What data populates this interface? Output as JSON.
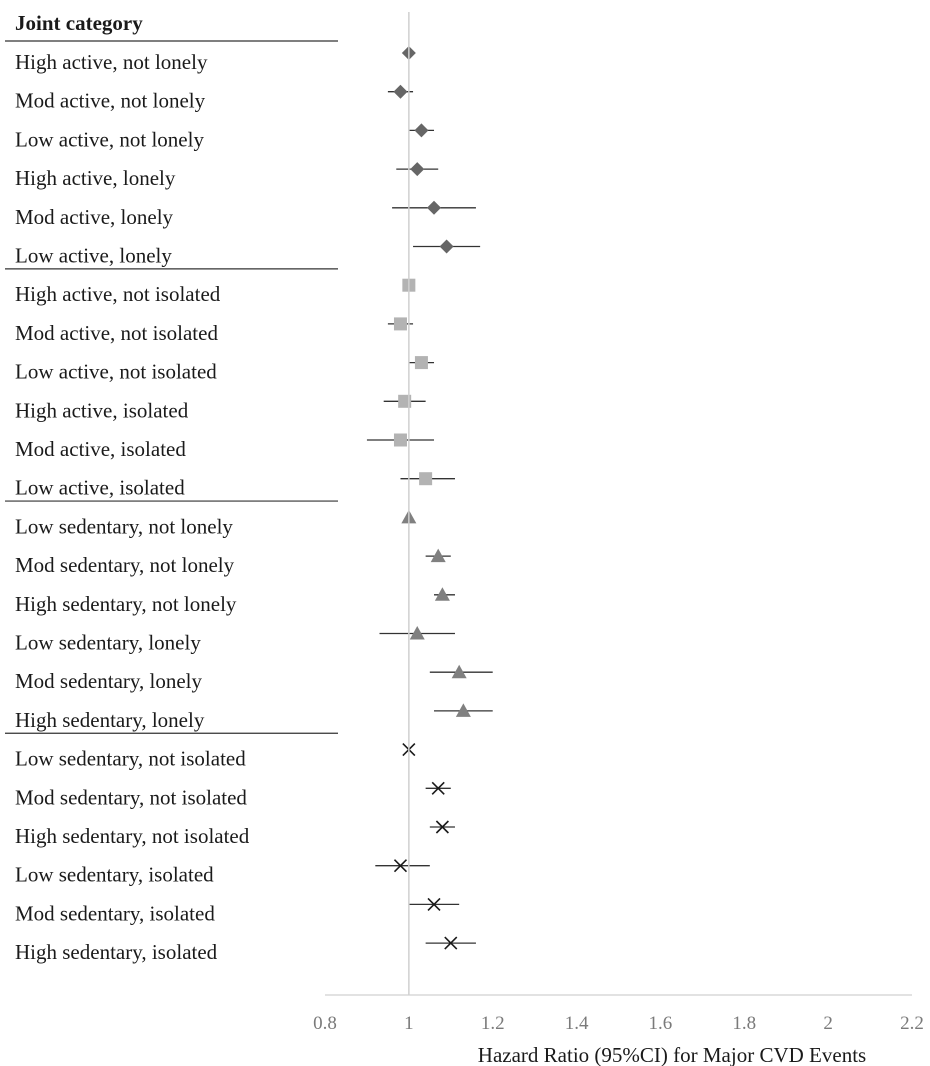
{
  "chart_data": {
    "type": "forest",
    "header": "Joint category",
    "xlabel": "Hazard Ratio (95%CI) for Major CVD Events",
    "xlim": [
      0.8,
      2.2
    ],
    "xticks": [
      "0.8",
      "1",
      "1.2",
      "1.4",
      "1.6",
      "1.8",
      "2",
      "2.2"
    ],
    "reference_line": 1,
    "groups": [
      {
        "marker": "diamond",
        "color": "#666666",
        "rows": [
          {
            "label": "High active, not lonely",
            "hr": 1.0,
            "lo": 1.0,
            "hi": 1.0
          },
          {
            "label": "Mod active, not lonely",
            "hr": 0.98,
            "lo": 0.95,
            "hi": 1.01
          },
          {
            "label": "Low active, not lonely",
            "hr": 1.03,
            "lo": 1.0,
            "hi": 1.06
          },
          {
            "label": "High active, lonely",
            "hr": 1.02,
            "lo": 0.97,
            "hi": 1.07
          },
          {
            "label": "Mod active, lonely",
            "hr": 1.06,
            "lo": 0.96,
            "hi": 1.16
          },
          {
            "label": "Low active, lonely",
            "hr": 1.09,
            "lo": 1.01,
            "hi": 1.17
          }
        ]
      },
      {
        "marker": "square",
        "color": "#b3b3b3",
        "rows": [
          {
            "label": "High active, not isolated",
            "hr": 1.0,
            "lo": 1.0,
            "hi": 1.0
          },
          {
            "label": "Mod active, not isolated",
            "hr": 0.98,
            "lo": 0.95,
            "hi": 1.01
          },
          {
            "label": "Low active, not isolated",
            "hr": 1.03,
            "lo": 1.0,
            "hi": 1.06
          },
          {
            "label": "High active, isolated",
            "hr": 0.99,
            "lo": 0.94,
            "hi": 1.04
          },
          {
            "label": "Mod active, isolated",
            "hr": 0.98,
            "lo": 0.9,
            "hi": 1.06
          },
          {
            "label": "Low active, isolated",
            "hr": 1.04,
            "lo": 0.98,
            "hi": 1.11
          }
        ]
      },
      {
        "marker": "triangle",
        "color": "#808080",
        "rows": [
          {
            "label": "Low sedentary, not lonely",
            "hr": 1.0,
            "lo": 1.0,
            "hi": 1.0
          },
          {
            "label": "Mod sedentary, not lonely",
            "hr": 1.07,
            "lo": 1.04,
            "hi": 1.1
          },
          {
            "label": "High sedentary, not lonely",
            "hr": 1.08,
            "lo": 1.06,
            "hi": 1.11
          },
          {
            "label": "Low sedentary, lonely",
            "hr": 1.02,
            "lo": 0.93,
            "hi": 1.11
          },
          {
            "label": "Mod sedentary, lonely",
            "hr": 1.12,
            "lo": 1.05,
            "hi": 1.2
          },
          {
            "label": "High sedentary, lonely",
            "hr": 1.13,
            "lo": 1.06,
            "hi": 1.2
          }
        ]
      },
      {
        "marker": "x",
        "color": "#1a1a1a",
        "rows": [
          {
            "label": "Low sedentary, not isolated",
            "hr": 1.0,
            "lo": 1.0,
            "hi": 1.0
          },
          {
            "label": "Mod sedentary, not isolated",
            "hr": 1.07,
            "lo": 1.04,
            "hi": 1.1
          },
          {
            "label": "High sedentary, not isolated",
            "hr": 1.08,
            "lo": 1.05,
            "hi": 1.11
          },
          {
            "label": "Low sedentary, isolated",
            "hr": 0.98,
            "lo": 0.92,
            "hi": 1.05
          },
          {
            "label": "Mod sedentary, isolated",
            "hr": 1.06,
            "lo": 1.0,
            "hi": 1.12
          },
          {
            "label": "High sedentary, isolated",
            "hr": 1.1,
            "lo": 1.04,
            "hi": 1.16
          }
        ]
      }
    ]
  }
}
